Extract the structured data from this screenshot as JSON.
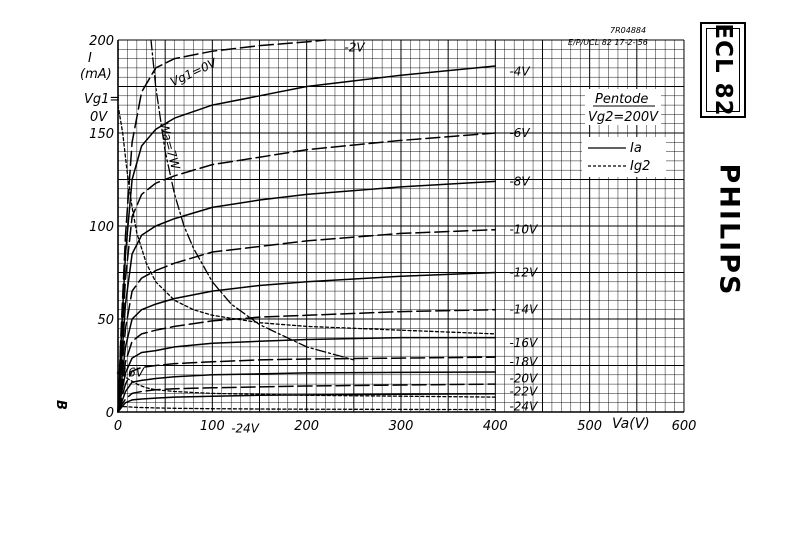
{
  "chart_data": {
    "type": "line",
    "header": [
      "7R04884",
      "E/P/UCL 82 17-2-'56"
    ],
    "mode_label": "Pentode",
    "condition_label": "Vg2=200V",
    "legend": [
      {
        "label": "Ia",
        "style": "solid"
      },
      {
        "label": "Ig2",
        "style": "dashed"
      }
    ],
    "ylabel": [
      "I",
      "(mA)"
    ],
    "vg1_label": [
      "Vg1=",
      "0V"
    ],
    "xlabel": "Va(V)",
    "side_label": "B",
    "xlim": [
      0,
      600
    ],
    "ylim": [
      0,
      200
    ],
    "x_ticks": [
      0,
      100,
      200,
      300,
      400,
      500,
      600
    ],
    "y_ticks": [
      0,
      50,
      100,
      150,
      200
    ],
    "grid": true,
    "series": [
      {
        "name": "-2V",
        "type": "Ia",
        "x": [
          0,
          3,
          8,
          15,
          25,
          40,
          60,
          100,
          150,
          200,
          220
        ],
        "y": [
          0,
          40,
          95,
          145,
          172,
          185,
          190,
          194,
          197,
          199,
          200
        ]
      },
      {
        "name": "-4V",
        "type": "Ia",
        "x": [
          0,
          3,
          8,
          15,
          25,
          40,
          60,
          100,
          150,
          200,
          300,
          400
        ],
        "y": [
          0,
          35,
          85,
          125,
          143,
          152,
          158,
          165,
          170,
          175,
          181,
          186
        ]
      },
      {
        "name": "-6V",
        "type": "Ia",
        "x": [
          0,
          3,
          8,
          15,
          25,
          40,
          60,
          100,
          150,
          200,
          300,
          400
        ],
        "y": [
          0,
          28,
          72,
          105,
          117,
          123,
          127,
          133,
          137,
          141,
          146,
          150
        ]
      },
      {
        "name": "-8V",
        "type": "Ia",
        "x": [
          0,
          3,
          8,
          15,
          25,
          40,
          60,
          100,
          150,
          200,
          300,
          400
        ],
        "y": [
          0,
          22,
          58,
          85,
          95,
          100,
          104,
          110,
          114,
          117,
          121,
          124
        ]
      },
      {
        "name": "-10V",
        "type": "Ia",
        "x": [
          0,
          3,
          8,
          15,
          25,
          40,
          60,
          100,
          150,
          200,
          300,
          400
        ],
        "y": [
          0,
          17,
          45,
          65,
          72,
          76,
          80,
          86,
          89,
          92,
          96,
          98
        ]
      },
      {
        "name": "-12V",
        "type": "Ia",
        "x": [
          0,
          3,
          8,
          15,
          25,
          40,
          60,
          100,
          150,
          200,
          300,
          400
        ],
        "y": [
          0,
          13,
          35,
          50,
          55,
          58,
          61,
          65,
          68,
          70,
          73,
          75
        ]
      },
      {
        "name": "-14V",
        "type": "Ia",
        "x": [
          0,
          3,
          8,
          15,
          25,
          40,
          60,
          100,
          150,
          200,
          300,
          400
        ],
        "y": [
          0,
          10,
          27,
          38,
          42,
          44,
          46,
          49,
          51,
          52,
          54,
          55
        ]
      },
      {
        "name": "-16V",
        "type": "Ia",
        "x": [
          0,
          3,
          8,
          15,
          25,
          40,
          60,
          100,
          150,
          200,
          300,
          400
        ],
        "y": [
          0,
          8,
          21,
          29,
          32,
          33,
          35,
          37,
          38,
          39,
          40,
          40
        ]
      },
      {
        "name": "-18V",
        "type": "Ia",
        "x": [
          0,
          3,
          8,
          15,
          25,
          40,
          60,
          100,
          150,
          200,
          300,
          400
        ],
        "y": [
          0,
          6,
          15,
          22,
          24,
          25,
          26,
          27,
          28,
          28.5,
          29,
          29.5
        ]
      },
      {
        "name": "-20V",
        "type": "Ia",
        "x": [
          0,
          3,
          8,
          15,
          25,
          40,
          60,
          100,
          150,
          200,
          300,
          400
        ],
        "y": [
          0,
          4,
          11,
          16,
          17,
          18,
          19,
          20,
          20.5,
          21,
          21.3,
          21.5
        ]
      },
      {
        "name": "-22V",
        "type": "Ia",
        "x": [
          0,
          3,
          8,
          15,
          25,
          40,
          60,
          100,
          150,
          200,
          300,
          400
        ],
        "y": [
          0,
          3,
          7,
          10,
          11,
          12,
          12.5,
          13,
          13.5,
          14,
          14.5,
          15
        ]
      },
      {
        "name": "-24V",
        "type": "Ia",
        "x": [
          0,
          3,
          8,
          15,
          25,
          40,
          60,
          100,
          150,
          200,
          300,
          400
        ],
        "y": [
          0,
          2,
          5,
          6.5,
          7,
          7.5,
          8,
          8.5,
          9,
          9.2,
          9.5,
          9.8
        ]
      },
      {
        "name": "Wa=7W",
        "type": "dissipation",
        "x": [
          35,
          40,
          50,
          60,
          70,
          80,
          100,
          120,
          150,
          200,
          250
        ],
        "y": [
          200,
          175,
          140,
          117,
          100,
          88,
          70,
          58,
          47,
          35,
          28
        ]
      },
      {
        "name": "Vg1=0V",
        "type": "Ig2",
        "x": [
          0,
          5,
          10,
          15,
          20,
          30,
          40,
          60,
          80,
          100,
          150,
          200,
          250,
          300,
          400
        ],
        "y": [
          165,
          150,
          128,
          110,
          96,
          80,
          70,
          60,
          55,
          52,
          48,
          46,
          45,
          44,
          42
        ]
      },
      {
        "name": "-16V",
        "type": "Ig2",
        "x": [
          0,
          5,
          10,
          20,
          30,
          40,
          60,
          80,
          100,
          150,
          200,
          300,
          400
        ],
        "y": [
          22,
          20,
          18,
          15,
          13,
          12,
          11,
          10.5,
          10,
          9.5,
          9,
          8.5,
          8
        ]
      },
      {
        "name": "-24V",
        "type": "Ig2",
        "x": [
          0,
          10,
          20,
          40,
          60,
          100,
          150,
          200,
          300,
          400
        ],
        "y": [
          3,
          2.8,
          2.5,
          2.2,
          2,
          1.8,
          1.6,
          1.5,
          1.4,
          1.3
        ]
      }
    ],
    "series_label_positions_v": [
      {
        "name": "-2V",
        "x": 240,
        "y": 196
      },
      {
        "name": "-4V",
        "x": 415,
        "y": 183
      },
      {
        "name": "-6V",
        "x": 415,
        "y": 150
      },
      {
        "name": "-8V",
        "x": 415,
        "y": 124
      },
      {
        "name": "-10V",
        "x": 415,
        "y": 98
      },
      {
        "name": "-12V",
        "x": 415,
        "y": 75
      },
      {
        "name": "-14V",
        "x": 415,
        "y": 55
      },
      {
        "name": "-16V",
        "x": 415,
        "y": 37
      },
      {
        "name": "-18V",
        "x": 415,
        "y": 27
      },
      {
        "name": "-20V",
        "x": 415,
        "y": 18
      },
      {
        "name": "-22V",
        "x": 415,
        "y": 11
      },
      {
        "name": "-24V",
        "x": 415,
        "y": 3
      }
    ],
    "ig2_annotations": [
      {
        "text": "Vg1=0V",
        "x": 58,
        "y": 175
      },
      {
        "text": "Wa=7W",
        "x": 44,
        "y": 155
      },
      {
        "text": "-16V",
        "x": -2,
        "y": 19
      },
      {
        "text": "-24V",
        "x": 120,
        "y": -11
      }
    ]
  },
  "brand": {
    "type_number": "ECL 82",
    "logo": "PHILIPS"
  }
}
